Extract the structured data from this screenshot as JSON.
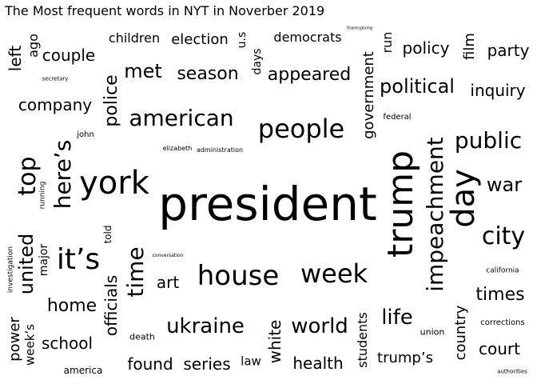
{
  "title": "The Most frequent words in NYT in Noverber 2019",
  "text_color": "#000000",
  "background": "#ffffff",
  "words": [
    {
      "text": "president",
      "vertical": false
    },
    {
      "text": "trump",
      "vertical": true
    },
    {
      "text": "york",
      "vertical": false
    },
    {
      "text": "day",
      "vertical": true
    },
    {
      "text": "people",
      "vertical": false
    },
    {
      "text": "impeachment",
      "vertical": true
    },
    {
      "text": "house",
      "vertical": false
    },
    {
      "text": "it’s",
      "vertical": false
    },
    {
      "text": "week",
      "vertical": false
    },
    {
      "text": "american",
      "vertical": false
    },
    {
      "text": "here’s",
      "vertical": true
    },
    {
      "text": "top",
      "vertical": true
    },
    {
      "text": "city",
      "vertical": false
    },
    {
      "text": "time",
      "vertical": true
    },
    {
      "text": "public",
      "vertical": false
    },
    {
      "text": "ukraine",
      "vertical": false
    },
    {
      "text": "world",
      "vertical": false
    },
    {
      "text": "war",
      "vertical": false
    },
    {
      "text": "united",
      "vertical": true
    },
    {
      "text": "political",
      "vertical": false
    },
    {
      "text": "met",
      "vertical": false
    },
    {
      "text": "life",
      "vertical": false
    },
    {
      "text": "season",
      "vertical": false
    },
    {
      "text": "appeared",
      "vertical": false
    },
    {
      "text": "times",
      "vertical": false
    },
    {
      "text": "police",
      "vertical": true
    },
    {
      "text": "government",
      "vertical": true
    },
    {
      "text": "home",
      "vertical": false
    },
    {
      "text": "company",
      "vertical": false
    },
    {
      "text": "couple",
      "vertical": false
    },
    {
      "text": "school",
      "vertical": false
    },
    {
      "text": "court",
      "vertical": false
    },
    {
      "text": "country",
      "vertical": true
    },
    {
      "text": "officials",
      "vertical": true
    },
    {
      "text": "found",
      "vertical": false
    },
    {
      "text": "series",
      "vertical": false
    },
    {
      "text": "health",
      "vertical": false
    },
    {
      "text": "trump’s",
      "vertical": false
    },
    {
      "text": "inquiry",
      "vertical": false
    },
    {
      "text": "party",
      "vertical": false
    },
    {
      "text": "policy",
      "vertical": false
    },
    {
      "text": "art",
      "vertical": false
    },
    {
      "text": "white",
      "vertical": true
    },
    {
      "text": "power",
      "vertical": true
    },
    {
      "text": "left",
      "vertical": true
    },
    {
      "text": "election",
      "vertical": false
    },
    {
      "text": "children",
      "vertical": false
    },
    {
      "text": "democrats",
      "vertical": false
    },
    {
      "text": "film",
      "vertical": true
    },
    {
      "text": "students",
      "vertical": true
    },
    {
      "text": "week’s",
      "vertical": true
    },
    {
      "text": "law",
      "vertical": false
    },
    {
      "text": "ago",
      "vertical": true
    },
    {
      "text": "run",
      "vertical": true
    },
    {
      "text": "u.s",
      "vertical": true
    },
    {
      "text": "days",
      "vertical": true
    },
    {
      "text": "major",
      "vertical": true
    },
    {
      "text": "america",
      "vertical": false
    },
    {
      "text": "death",
      "vertical": false
    },
    {
      "text": "union",
      "vertical": false
    },
    {
      "text": "told",
      "vertical": true
    },
    {
      "text": "corrections",
      "vertical": false
    },
    {
      "text": "john",
      "vertical": false
    },
    {
      "text": "federal",
      "vertical": false
    },
    {
      "text": "california",
      "vertical": false
    },
    {
      "text": "running",
      "vertical": true
    },
    {
      "text": "investigation",
      "vertical": true
    },
    {
      "text": "authorities",
      "vertical": false
    },
    {
      "text": "secretary",
      "vertical": false
    },
    {
      "text": "elizabeth",
      "vertical": false
    },
    {
      "text": "administration",
      "vertical": false
    },
    {
      "text": "conversation",
      "vertical": false
    },
    {
      "text": "thanksgiving",
      "vertical": false
    }
  ]
}
